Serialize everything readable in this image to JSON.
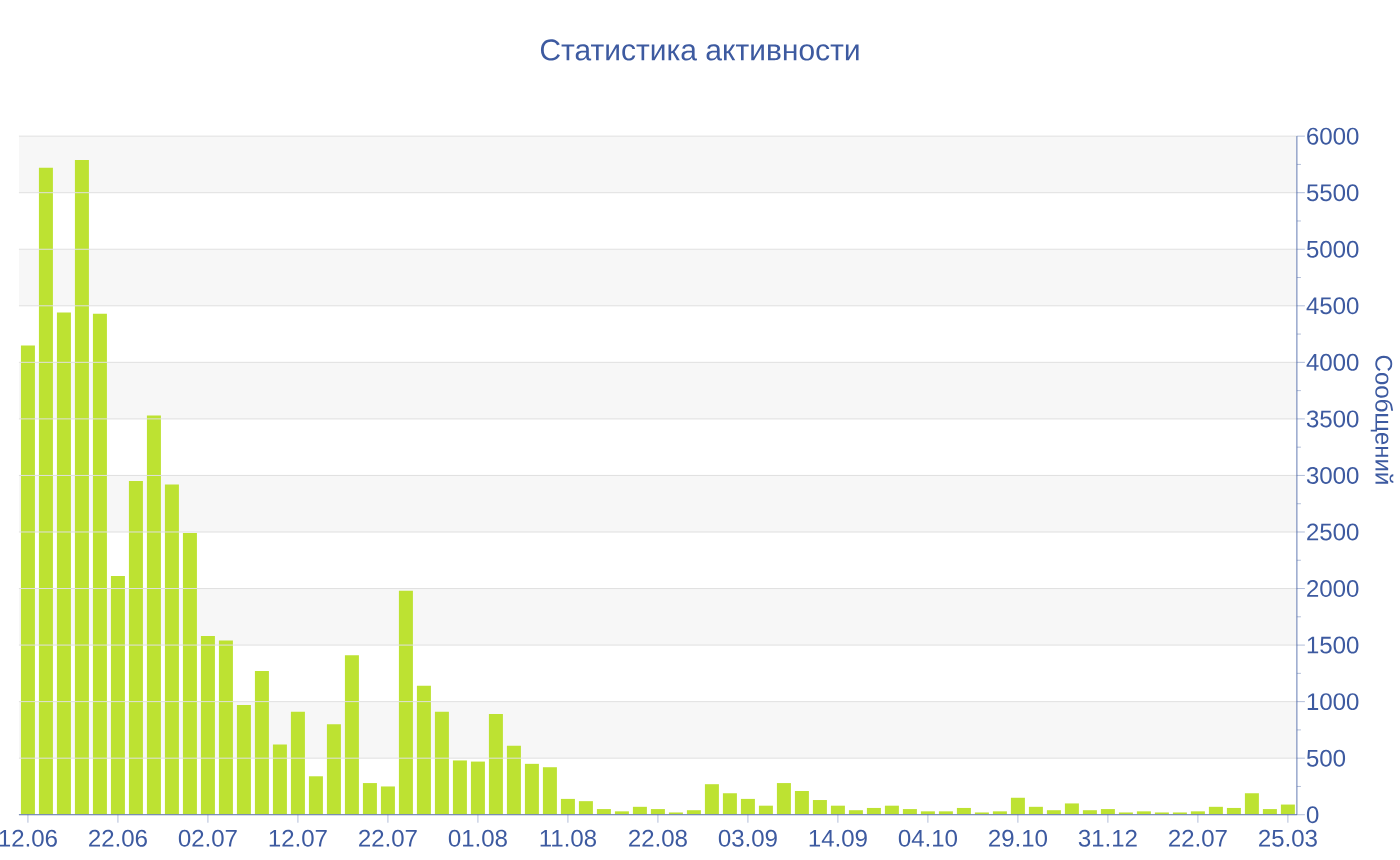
{
  "chart_data": {
    "type": "bar",
    "title": "Статистика активности",
    "ylabel": "Сообщений",
    "color": "#bde232",
    "grid": true,
    "categories": [
      "12.06",
      null,
      null,
      null,
      null,
      "22.06",
      null,
      null,
      null,
      null,
      "02.07",
      null,
      null,
      null,
      null,
      "12.07",
      null,
      null,
      null,
      null,
      "22.07",
      null,
      null,
      null,
      null,
      "01.08",
      null,
      null,
      null,
      null,
      "11.08",
      null,
      null,
      null,
      null,
      "22.08",
      null,
      null,
      null,
      null,
      "03.09",
      null,
      null,
      null,
      null,
      "14.09",
      null,
      null,
      null,
      null,
      "04.10",
      null,
      null,
      null,
      null,
      "29.10",
      null,
      null,
      null,
      null,
      "31.12",
      null,
      null,
      null,
      null,
      "22.07",
      null,
      null,
      null,
      null,
      "25.03"
    ],
    "values": [
      4150,
      5720,
      4440,
      5790,
      4430,
      2110,
      2950,
      3530,
      2920,
      2490,
      1580,
      1540,
      970,
      1270,
      620,
      910,
      340,
      800,
      1410,
      280,
      250,
      1980,
      1140,
      910,
      480,
      470,
      890,
      610,
      450,
      420,
      140,
      120,
      50,
      30,
      70,
      50,
      20,
      40,
      270,
      190,
      140,
      80,
      280,
      210,
      130,
      80,
      40,
      60,
      80,
      50,
      30,
      30,
      60,
      20,
      30,
      150,
      70,
      40,
      100,
      40,
      50,
      20,
      30,
      20,
      20,
      30,
      70,
      60,
      190,
      50,
      90
    ],
    "ylim": [
      0,
      6000
    ],
    "yticks": [
      0,
      500,
      1000,
      1500,
      2000,
      2500,
      3000,
      3500,
      4000,
      4500,
      5000,
      5500,
      6000
    ]
  }
}
